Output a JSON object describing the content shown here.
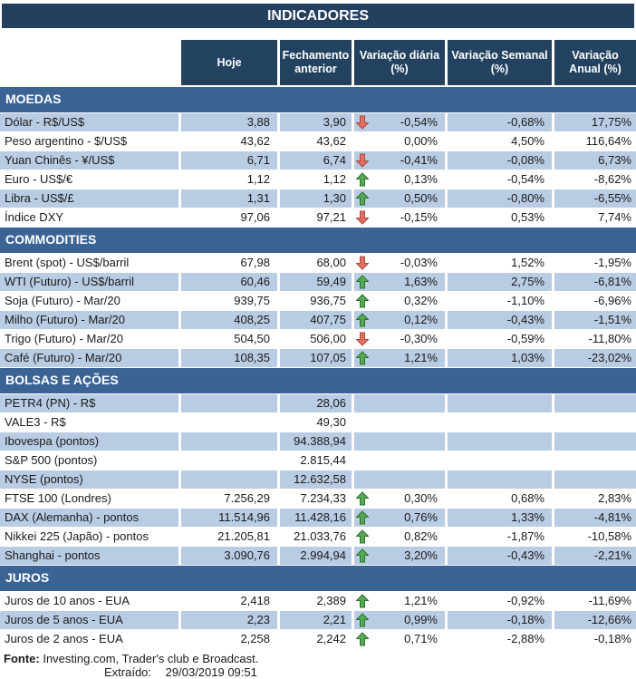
{
  "chart_data": {
    "type": "table",
    "title": "INDICADORES",
    "columns": [
      "Hoje",
      "Fechamento anterior",
      "Variação diária (%)",
      "Variação Semanal (%)",
      "Variação Anual (%)"
    ],
    "legend": "arrows indicate direction of daily change (up = green, down = red)",
    "sections": [
      {
        "name": "MOEDAS",
        "rows": [
          {
            "label": "Dólar - R$/US$",
            "hoje": "3,88",
            "fechamento": "3,90",
            "arrow": "down",
            "diaria": "-0,54%",
            "semanal": "-0,68%",
            "anual": "17,75%",
            "shaded": true
          },
          {
            "label": "Peso argentino - $/US$",
            "hoje": "43,62",
            "fechamento": "43,62",
            "arrow": "",
            "diaria": "0,00%",
            "semanal": "4,50%",
            "anual": "116,64%",
            "shaded": false
          },
          {
            "label": "Yuan Chinês - ¥/US$",
            "hoje": "6,71",
            "fechamento": "6,74",
            "arrow": "down",
            "diaria": "-0,41%",
            "semanal": "-0,08%",
            "anual": "6,73%",
            "shaded": true
          },
          {
            "label": "Euro - US$/€",
            "hoje": "1,12",
            "fechamento": "1,12",
            "arrow": "up",
            "diaria": "0,13%",
            "semanal": "-0,54%",
            "anual": "-8,62%",
            "shaded": false
          },
          {
            "label": "Libra - US$/£",
            "hoje": "1,31",
            "fechamento": "1,30",
            "arrow": "up",
            "diaria": "0,50%",
            "semanal": "-0,80%",
            "anual": "-6,55%",
            "shaded": true
          },
          {
            "label": "Índice DXY",
            "hoje": "97,06",
            "fechamento": "97,21",
            "arrow": "down",
            "diaria": "-0,15%",
            "semanal": "0,53%",
            "anual": "7,74%",
            "shaded": false
          }
        ]
      },
      {
        "name": "COMMODITIES",
        "rows": [
          {
            "label": "Brent (spot) - US$/barril",
            "hoje": "67,98",
            "fechamento": "68,00",
            "arrow": "down",
            "diaria": "-0,03%",
            "semanal": "1,52%",
            "anual": "-1,95%",
            "shaded": false
          },
          {
            "label": "WTI (Futuro) - US$/barril",
            "hoje": "60,46",
            "fechamento": "59,49",
            "arrow": "up",
            "diaria": "1,63%",
            "semanal": "2,75%",
            "anual": "-6,81%",
            "shaded": true
          },
          {
            "label": "Soja (Futuro) - Mar/20",
            "hoje": "939,75",
            "fechamento": "936,75",
            "arrow": "up",
            "diaria": "0,32%",
            "semanal": "-1,10%",
            "anual": "-6,96%",
            "shaded": false
          },
          {
            "label": "Milho (Futuro) - Mar/20",
            "hoje": "408,25",
            "fechamento": "407,75",
            "arrow": "up",
            "diaria": "0,12%",
            "semanal": "-0,43%",
            "anual": "-1,51%",
            "shaded": true
          },
          {
            "label": "Trigo (Futuro) - Mar/20",
            "hoje": "504,50",
            "fechamento": "506,00",
            "arrow": "down",
            "diaria": "-0,30%",
            "semanal": "-0,59%",
            "anual": "-11,80%",
            "shaded": false
          },
          {
            "label": "Café (Futuro) - Mar/20",
            "hoje": "108,35",
            "fechamento": "107,05",
            "arrow": "up",
            "diaria": "1,21%",
            "semanal": "1,03%",
            "anual": "-23,02%",
            "shaded": true
          }
        ]
      },
      {
        "name": "BOLSAS E AÇÕES",
        "rows": [
          {
            "label": "PETR4 (PN) - R$",
            "hoje": "",
            "fechamento": "28,06",
            "arrow": "",
            "diaria": "",
            "semanal": "",
            "anual": "",
            "shaded": true
          },
          {
            "label": "VALE3 - R$",
            "hoje": "",
            "fechamento": "49,30",
            "arrow": "",
            "diaria": "",
            "semanal": "",
            "anual": "",
            "shaded": false
          },
          {
            "label": "Ibovespa (pontos)",
            "hoje": "",
            "fechamento": "94.388,94",
            "arrow": "",
            "diaria": "",
            "semanal": "",
            "anual": "",
            "shaded": true
          },
          {
            "label": "S&P 500 (pontos)",
            "hoje": "",
            "fechamento": "2.815,44",
            "arrow": "",
            "diaria": "",
            "semanal": "",
            "anual": "",
            "shaded": false
          },
          {
            "label": "NYSE (pontos)",
            "hoje": "",
            "fechamento": "12.632,58",
            "arrow": "",
            "diaria": "",
            "semanal": "",
            "anual": "",
            "shaded": true
          },
          {
            "label": "FTSE 100 (Londres)",
            "hoje": "7.256,29",
            "fechamento": "7.234,33",
            "arrow": "up",
            "diaria": "0,30%",
            "semanal": "0,68%",
            "anual": "2,83%",
            "shaded": false
          },
          {
            "label": "DAX (Alemanha) - pontos",
            "hoje": "11.514,96",
            "fechamento": "11.428,16",
            "arrow": "up",
            "diaria": "0,76%",
            "semanal": "1,33%",
            "anual": "-4,81%",
            "shaded": true
          },
          {
            "label": "Nikkei 225 (Japão) - pontos",
            "hoje": "21.205,81",
            "fechamento": "21.033,76",
            "arrow": "up",
            "diaria": "0,82%",
            "semanal": "-1,87%",
            "anual": "-10,58%",
            "shaded": false
          },
          {
            "label": "Shanghai - pontos",
            "hoje": "3.090,76",
            "fechamento": "2.994,94",
            "arrow": "up",
            "diaria": "3,20%",
            "semanal": "-0,43%",
            "anual": "-2,21%",
            "shaded": true
          }
        ]
      },
      {
        "name": "JUROS",
        "rows": [
          {
            "label": "Juros de 10 anos - EUA",
            "hoje": "2,418",
            "fechamento": "2,389",
            "arrow": "up",
            "diaria": "1,21%",
            "semanal": "-0,92%",
            "anual": "-11,69%",
            "shaded": false
          },
          {
            "label": "Juros de 5 anos - EUA",
            "hoje": "2,23",
            "fechamento": "2,21",
            "arrow": "up",
            "diaria": "0,99%",
            "semanal": "-0,18%",
            "anual": "-12,66%",
            "shaded": true
          },
          {
            "label": "Juros de 2 anos - EUA",
            "hoje": "2,258",
            "fechamento": "2,242",
            "arrow": "up",
            "diaria": "0,71%",
            "semanal": "-2,88%",
            "anual": "-0,18%",
            "shaded": false
          }
        ]
      }
    ]
  },
  "footer": {
    "fonte_label": "Fonte:",
    "fonte_text": "Investing.com, Trader's club e Broadcast.",
    "extraido_label": "Extraído:",
    "extraido_value": "29/03/2019 09:51"
  },
  "colors": {
    "title_bg": "#24405f",
    "header_bg": "#22425f",
    "section_bg": "#3b6394",
    "row_shaded": "#b8cce4",
    "arrow_up_fill": "#55a955",
    "arrow_up_stroke": "#2f7031",
    "arrow_down_fill": "#df6e63",
    "arrow_down_stroke": "#ac4a3f"
  }
}
